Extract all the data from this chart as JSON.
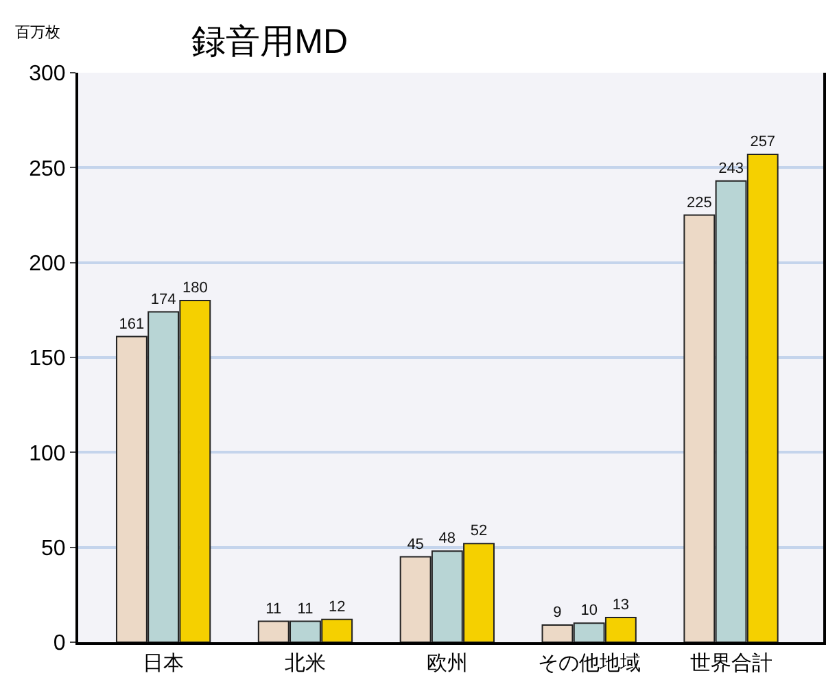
{
  "chart_data": {
    "type": "bar",
    "title": "録音用MD",
    "ylabel": "百万枚",
    "categories": [
      "日本",
      "北米",
      "欧州",
      "その他地域",
      "世界合計"
    ],
    "series": [
      {
        "color": "#ecd9c6",
        "values": [
          161,
          11,
          45,
          9,
          225
        ]
      },
      {
        "color": "#b8d5d5",
        "values": [
          174,
          11,
          48,
          10,
          243
        ]
      },
      {
        "color": "#f5d000",
        "values": [
          180,
          12,
          52,
          13,
          257
        ]
      }
    ],
    "ylim": [
      0,
      300
    ],
    "yticks": [
      0,
      50,
      100,
      150,
      200,
      250,
      300
    ],
    "grid": "y",
    "data_labels": true
  }
}
